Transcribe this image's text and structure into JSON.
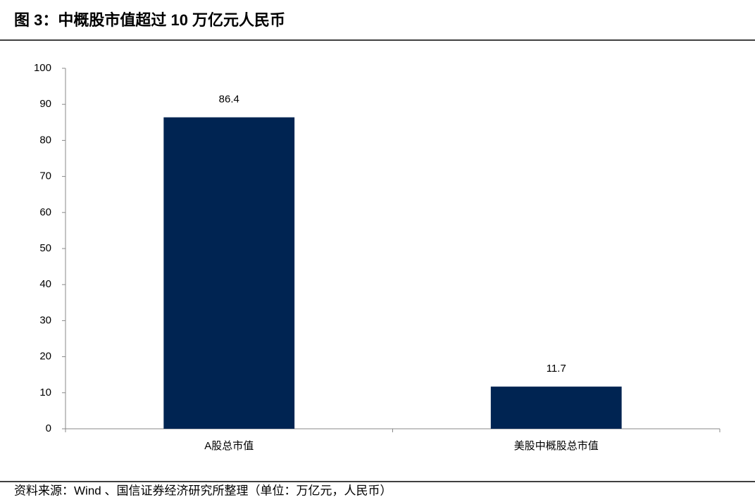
{
  "chart_data": {
    "type": "bar",
    "title": "图 3：中概股市值超过 10 万亿元人民币",
    "source": "资料来源：Wind 、国信证券经济研究所整理（单位：万亿元，人民币）",
    "categories": [
      "A股总市值",
      "美股中概股总市值"
    ],
    "values": [
      86.4,
      11.7
    ],
    "color": "#002452",
    "ylim": [
      0,
      100
    ],
    "yticks": [
      0,
      10,
      20,
      30,
      40,
      50,
      60,
      70,
      80,
      90,
      100
    ],
    "grid": false
  }
}
